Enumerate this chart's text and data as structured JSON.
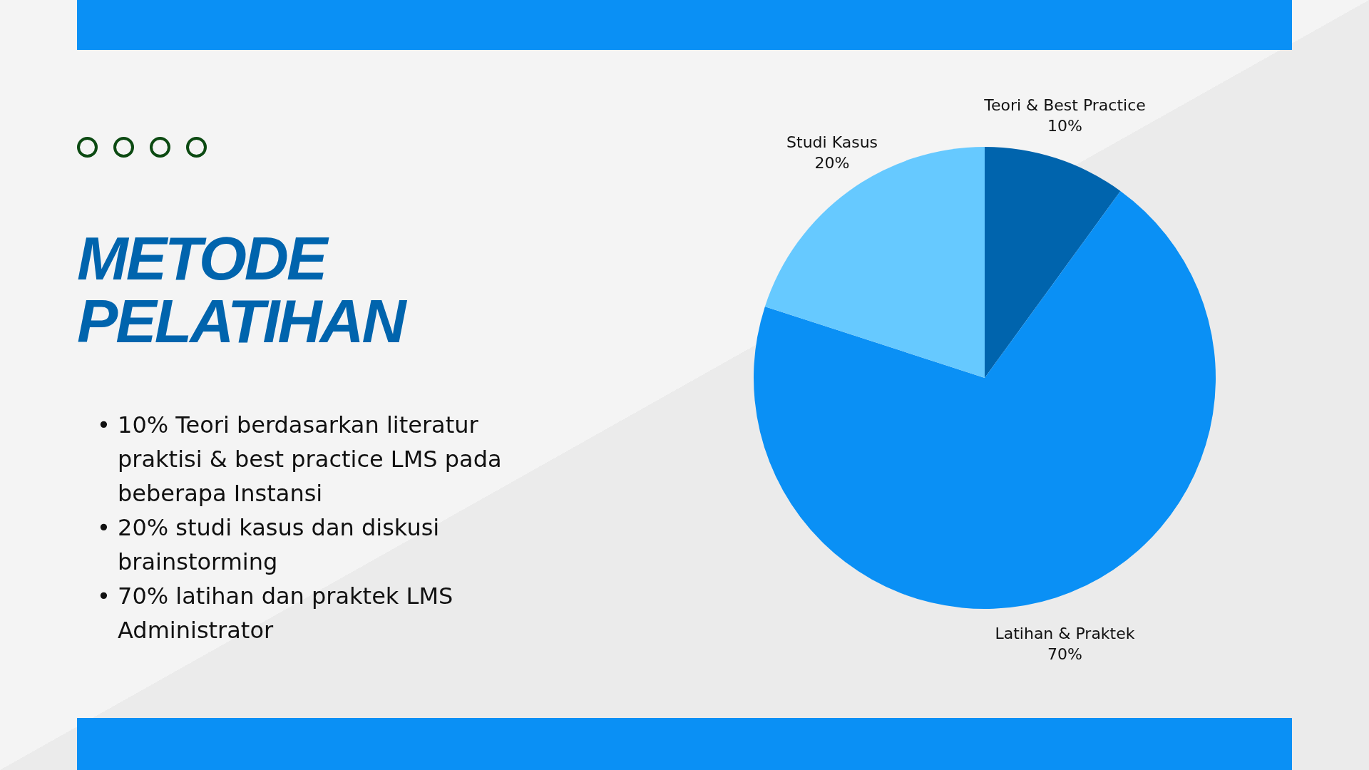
{
  "chart_data": {
    "type": "pie",
    "title": "METODE PELATIHAN",
    "categories": [
      "Teori & Best Practice",
      "Latihan & Praktek",
      "Studi Kasus"
    ],
    "values": [
      10,
      70,
      20
    ],
    "value_labels": [
      "10%",
      "70%",
      "20%"
    ],
    "colors": [
      "#0064ad",
      "#0a90f5",
      "#66c9ff"
    ],
    "legend": false,
    "annotations": [
      "• 10% Teori berdasarkan literatur praktisi & best practice LMS pada beberapa Instansi",
      "• 20% studi kasus dan diskusi brainstorming",
      "• 70% latihan dan praktek LMS Administrator"
    ]
  }
}
